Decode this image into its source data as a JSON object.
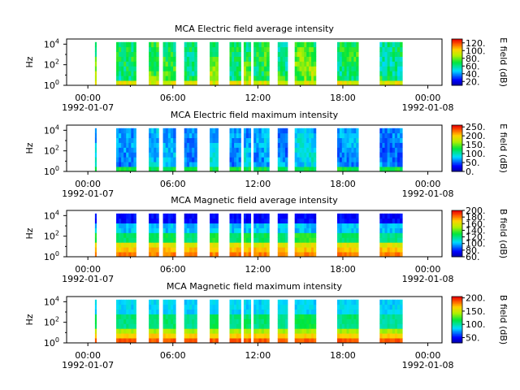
{
  "chart_data": [
    {
      "type": "heatmap",
      "title": "MCA  Electric field average intensity",
      "ylabel": "Hz",
      "colorbar_label": "E field (dB)",
      "colorbar_ticks": [
        "20.",
        "40.",
        "60.",
        "80.",
        "100.",
        "120."
      ],
      "clim": [
        10,
        130
      ],
      "kind": "elec_avg"
    },
    {
      "type": "heatmap",
      "title": "MCA  Electric field maximum intensity",
      "ylabel": "Hz",
      "colorbar_label": "E field (dB)",
      "colorbar_ticks": [
        "0.",
        "50.",
        "100.",
        "150.",
        "200.",
        "250."
      ],
      "clim": [
        0,
        260
      ],
      "kind": "elec_max"
    },
    {
      "type": "heatmap",
      "title": "MCA  Magnetic field average intensity",
      "ylabel": "Hz",
      "colorbar_label": "B field (dB)",
      "colorbar_ticks": [
        "60.",
        "80.",
        "100.",
        "120.",
        "140.",
        "160.",
        "180.",
        "200."
      ],
      "clim": [
        60,
        200
      ],
      "kind": "mag_avg"
    },
    {
      "type": "heatmap",
      "title": "MCA  Magnetic field maximum intensity",
      "ylabel": "Hz",
      "colorbar_label": "B field (dB)",
      "colorbar_ticks": [
        "50.",
        "100.",
        "150.",
        "200."
      ],
      "clim": [
        30,
        205
      ],
      "kind": "mag_max"
    }
  ],
  "shared": {
    "x_ticks": [
      "00:00",
      "06:00",
      "12:00",
      "18:00",
      "00:00"
    ],
    "x_hours": [
      0,
      6,
      12,
      18,
      24
    ],
    "x_date_labels": [
      [
        "1992-01-07",
        0
      ],
      [
        "1992-01-08",
        24
      ]
    ],
    "xlim_hours": [
      -1.5,
      25
    ],
    "y_ticks": [
      [
        "10",
        "0"
      ],
      [
        "10",
        "2"
      ],
      [
        "10",
        "4"
      ]
    ],
    "y_tick_exponents": [
      0,
      2,
      4
    ],
    "ylim_log10": [
      0,
      4.5
    ],
    "data_segments_hours": [
      [
        0.5,
        0.6
      ],
      [
        2.0,
        3.4
      ],
      [
        4.3,
        5.0
      ],
      [
        5.3,
        6.2
      ],
      [
        6.8,
        7.7
      ],
      [
        8.6,
        9.2
      ],
      [
        10.0,
        10.8
      ],
      [
        11.0,
        11.5
      ],
      [
        11.7,
        12.8
      ],
      [
        13.4,
        14.1
      ],
      [
        14.6,
        16.1
      ],
      [
        17.6,
        19.1
      ],
      [
        20.6,
        22.2
      ]
    ]
  }
}
